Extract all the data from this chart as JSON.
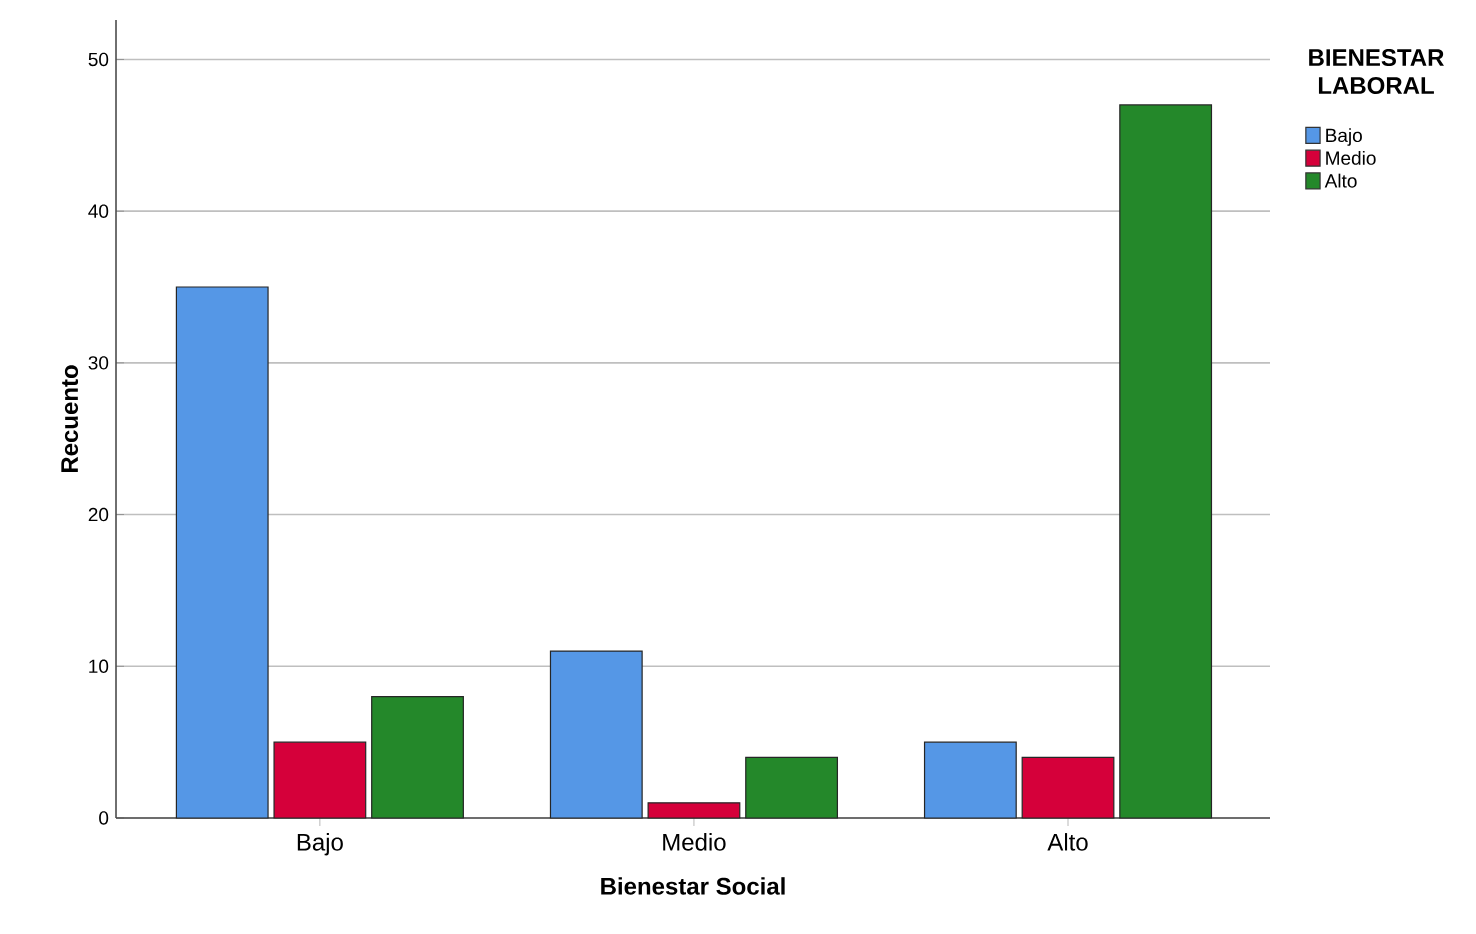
{
  "chart_data": {
    "type": "bar",
    "xlabel": "Bienestar Social",
    "ylabel": "Recuento",
    "legend_title": "BIENESTAR LABORAL",
    "categories": [
      "Bajo",
      "Medio",
      "Alto"
    ],
    "series": [
      {
        "name": "Bajo",
        "color": "#5597e6",
        "values": [
          35,
          11,
          5
        ]
      },
      {
        "name": "Medio",
        "color": "#d5003a",
        "values": [
          5,
          1,
          4
        ]
      },
      {
        "name": "Alto",
        "color": "#24882a",
        "values": [
          8,
          4,
          47
        ]
      }
    ],
    "ylim": [
      0,
      52.6
    ],
    "yticks": [
      0,
      10,
      20,
      30,
      40,
      50
    ],
    "grid": "y",
    "legend": "top right"
  }
}
